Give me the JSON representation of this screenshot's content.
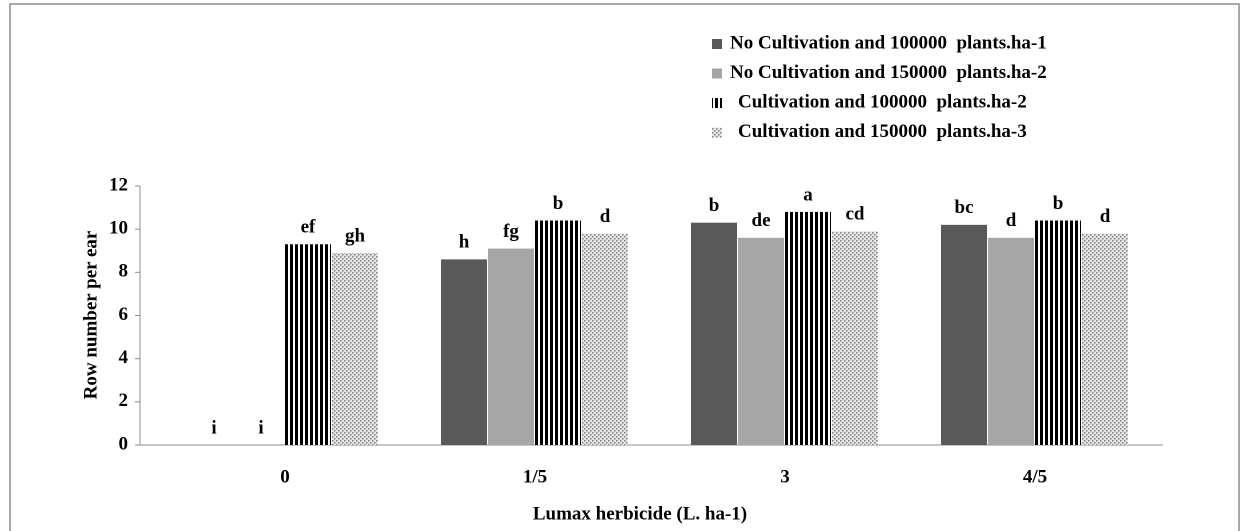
{
  "chart_data": {
    "type": "bar",
    "xlabel": "Lumax herbicide (L. ha-1)",
    "ylabel": "Row number per ear",
    "categories": [
      "0",
      "1/5",
      "3",
      "4/5"
    ],
    "series": [
      {
        "name": "No Cultivation and 100000  plants.ha-1",
        "color": "#595959",
        "pattern": "solid",
        "values": [
          0,
          8.6,
          10.3,
          10.2
        ],
        "labels": [
          "i",
          "h",
          "b",
          "bc"
        ]
      },
      {
        "name": "No Cultivation and 150000  plants.ha-2",
        "color": "#a6a6a6",
        "pattern": "solid",
        "values": [
          0,
          9.1,
          9.6,
          9.6
        ],
        "labels": [
          "i",
          "fg",
          "de",
          "d"
        ]
      },
      {
        "name": "Cultivation and 100000  plants.ha-2",
        "color": "#000000",
        "pattern": "vertical-stripes",
        "values": [
          9.3,
          10.4,
          10.8,
          10.4
        ],
        "labels": [
          "ef",
          "b",
          "a",
          "b"
        ]
      },
      {
        "name": "Cultivation and 150000  plants.ha-3",
        "color": "#7f7f7f",
        "pattern": "dots",
        "values": [
          8.9,
          9.8,
          9.9,
          9.8
        ],
        "labels": [
          "gh",
          "d",
          "cd",
          "d"
        ]
      }
    ],
    "ylim": [
      0,
      12
    ],
    "yticks": [
      0,
      2,
      4,
      6,
      8,
      10,
      12
    ],
    "grid": false,
    "legend": "top-right"
  }
}
